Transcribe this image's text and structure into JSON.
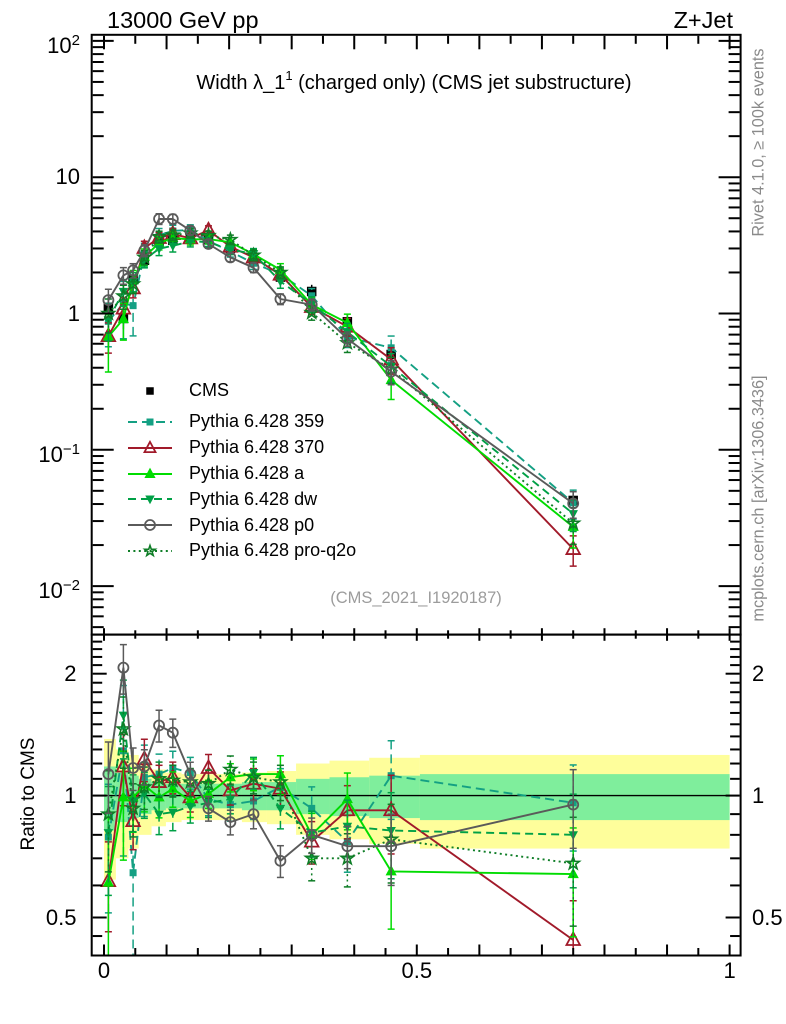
{
  "header": {
    "left": "13000 GeV pp",
    "right": "Z+Jet"
  },
  "title": {
    "main": "Width λ_1",
    "sup": "1",
    "suffix": " (charged only) (CMS jet substructure)"
  },
  "watermark": "(CMS_2021_I1920187)",
  "side_notes": {
    "top": "Rivet 4.1.0, ≥ 100k events",
    "bottom": "mcplots.cern.ch [arXiv:1306.3436]"
  },
  "ratio_axis_label": "Ratio to CMS",
  "legend": {
    "items": [
      "CMS",
      "Pythia 6.428 359",
      "Pythia 6.428 370",
      "Pythia 6.428 a",
      "Pythia 6.428 dw",
      "Pythia 6.428 p0",
      "Pythia 6.428 pro-q2o"
    ]
  },
  "chart_data": {
    "type": "line",
    "title": "Width λ_1^1 (charged only) (CMS jet substructure)",
    "beam": "13000 GeV pp",
    "process": "Z+Jet",
    "xlabel": "",
    "ylabel_ratio": "Ratio to CMS",
    "x_axis": {
      "ticks": [
        0,
        0.5,
        1
      ],
      "tick_labels": [
        "0",
        "0.5",
        "1"
      ],
      "minor_step": 0.05,
      "range_units": [
        -0.0208,
        1.019
      ]
    },
    "top_panel_y": {
      "scale": "log",
      "range": [
        0.00442,
        110
      ],
      "decade_labels": [
        {
          "base": "10",
          "exp": "2",
          "v": 100
        },
        {
          "base": "10",
          "exp": "",
          "v": 10
        },
        {
          "base": "1",
          "exp": "",
          "v": 1
        },
        {
          "base": "10",
          "exp": "−1",
          "v": 0.1
        },
        {
          "base": "10",
          "exp": "−2",
          "v": 0.01
        }
      ]
    },
    "ratio_panel_y": {
      "scale": "log",
      "range": [
        0.403,
        2.5
      ],
      "major_ticks": [
        0.5,
        1,
        2
      ],
      "major_tick_labels": [
        "0.5",
        "1",
        "2"
      ],
      "minor_ticks": [
        0.45,
        0.6,
        0.7,
        0.8,
        0.9,
        1.1,
        1.2,
        1.3,
        1.4,
        1.5,
        1.6,
        1.7,
        1.8,
        1.9,
        2.1,
        2.2,
        2.3,
        2.4
      ]
    },
    "x": [
      0.007,
      0.031,
      0.0465,
      0.0645,
      0.088,
      0.11,
      0.138,
      0.167,
      0.202,
      0.239,
      0.282,
      0.332,
      0.389,
      0.459,
      0.75
    ],
    "bin_edges": [
      0,
      0.019,
      0.039,
      0.0555,
      0.076,
      0.099,
      0.124,
      0.1525,
      0.1845,
      0.2205,
      0.2605,
      0.307,
      0.3605,
      0.424,
      0.505,
      1.0
    ],
    "data_series": {
      "name": "CMS",
      "color": "#000000",
      "marker": "square-filled",
      "marker_size": 9.5,
      "values": [
        1.11,
        0.92,
        1.77,
        2.46,
        3.32,
        3.45,
        3.6,
        3.48,
        3.0,
        2.41,
        1.85,
        1.45,
        0.87,
        0.5,
        0.0425
      ],
      "rel_err": [
        0.2,
        0.17,
        0.14,
        0.12,
        0.1,
        0.09,
        0.085,
        0.085,
        0.085,
        0.09,
        0.1,
        0.12,
        0.14,
        0.16,
        0.17
      ]
    },
    "mc_series": [
      {
        "name": "Pythia 6.428 359",
        "color": "#14a083",
        "dash": "9,5",
        "marker": "square-filled",
        "marker_size": 7,
        "ratio_to_cms": [
          0.79,
          1.29,
          0.645,
          1.11,
          1.13,
          1.17,
          1.14,
          0.98,
          0.95,
          0.97,
          1.05,
          0.93,
          0.77,
          1.12,
          0.96
        ],
        "rel_err": [
          0.35,
          0.45,
          0.4,
          0.2,
          0.12,
          0.1,
          0.09,
          0.09,
          0.09,
          0.1,
          0.11,
          0.13,
          0.16,
          0.22,
          0.24
        ]
      },
      {
        "name": "Pythia 6.428 370",
        "color": "#a11a2a",
        "dash": "",
        "marker": "triangle-open",
        "marker_size": 13.5,
        "ratio_to_cms": [
          0.615,
          1.18,
          0.865,
          1.23,
          1.08,
          1.11,
          0.99,
          1.17,
          1.03,
          1.07,
          1.04,
          0.77,
          0.92,
          0.92,
          0.44
        ],
        "rel_err": [
          0.25,
          0.2,
          0.15,
          0.12,
          0.1,
          0.09,
          0.08,
          0.08,
          0.08,
          0.09,
          0.1,
          0.12,
          0.15,
          0.22,
          0.25
        ]
      },
      {
        "name": "Pythia 6.428 a",
        "color": "#00dc00",
        "dash": "",
        "marker": "triangle-filled",
        "marker_size": 9.5,
        "ratio_to_cms": [
          0.61,
          0.99,
          0.99,
          1.06,
          0.99,
          1.04,
          0.97,
          1.01,
          1.11,
          1.13,
          1.13,
          0.8,
          0.98,
          0.65,
          0.64
        ],
        "rel_err": [
          0.45,
          0.3,
          0.18,
          0.14,
          0.11,
          0.1,
          0.09,
          0.08,
          0.08,
          0.09,
          0.11,
          0.13,
          0.16,
          0.28,
          0.3
        ]
      },
      {
        "name": "Pythia 6.428 dw",
        "color": "#00a046",
        "dash": "8,5",
        "marker": "tridown-filled",
        "marker_size": 9.5,
        "ratio_to_cms": [
          0.81,
          1.58,
          0.97,
          1.01,
          0.9,
          0.91,
          0.94,
          0.96,
          0.98,
          1.14,
          0.93,
          0.81,
          0.84,
          0.82,
          0.8
        ],
        "rel_err": [
          0.3,
          0.22,
          0.16,
          0.13,
          0.11,
          0.1,
          0.09,
          0.08,
          0.08,
          0.09,
          0.11,
          0.13,
          0.16,
          0.24,
          0.26
        ]
      },
      {
        "name": "Pythia 6.428 pro-q2o",
        "color": "#0e7d26",
        "dash": "2,3.4",
        "marker": "star-open",
        "marker_size": 13,
        "ratio_to_cms": [
          0.9,
          1.46,
          0.93,
          1.05,
          1.1,
          1.09,
          1.08,
          1.07,
          1.16,
          1.11,
          1.08,
          0.7,
          0.7,
          0.78,
          0.68
        ],
        "rel_err": [
          0.28,
          0.2,
          0.15,
          0.12,
          0.1,
          0.09,
          0.08,
          0.08,
          0.08,
          0.09,
          0.1,
          0.12,
          0.15,
          0.22,
          0.3
        ]
      },
      {
        "name": "Pythia 6.428 p0",
        "color": "#5a5a5a",
        "dash": "",
        "marker": "circle-open",
        "marker_size": 10,
        "ratio_to_cms": [
          1.13,
          2.07,
          1.17,
          1.18,
          1.49,
          1.43,
          1.13,
          0.93,
          0.86,
          0.9,
          0.69,
          0.8,
          0.75,
          0.75,
          0.95
        ],
        "rel_err": [
          0.2,
          0.14,
          0.12,
          0.1,
          0.09,
          0.08,
          0.07,
          0.07,
          0.07,
          0.08,
          0.09,
          0.1,
          0.12,
          0.2,
          0.22
        ]
      }
    ],
    "bands": {
      "yellow_rel": [
        0.38,
        0.3,
        0.26,
        0.2,
        0.16,
        0.14,
        0.13,
        0.13,
        0.13,
        0.14,
        0.15,
        0.2,
        0.22,
        0.24,
        0.26
      ],
      "green_rel": [
        0.18,
        0.14,
        0.12,
        0.1,
        0.08,
        0.07,
        0.07,
        0.07,
        0.07,
        0.08,
        0.08,
        0.1,
        0.11,
        0.12,
        0.13
      ],
      "yellow_color": "#fefe9b",
      "green_color": "#7fee9c"
    },
    "legend_position": "top-panel-lower-left",
    "grid": false
  }
}
